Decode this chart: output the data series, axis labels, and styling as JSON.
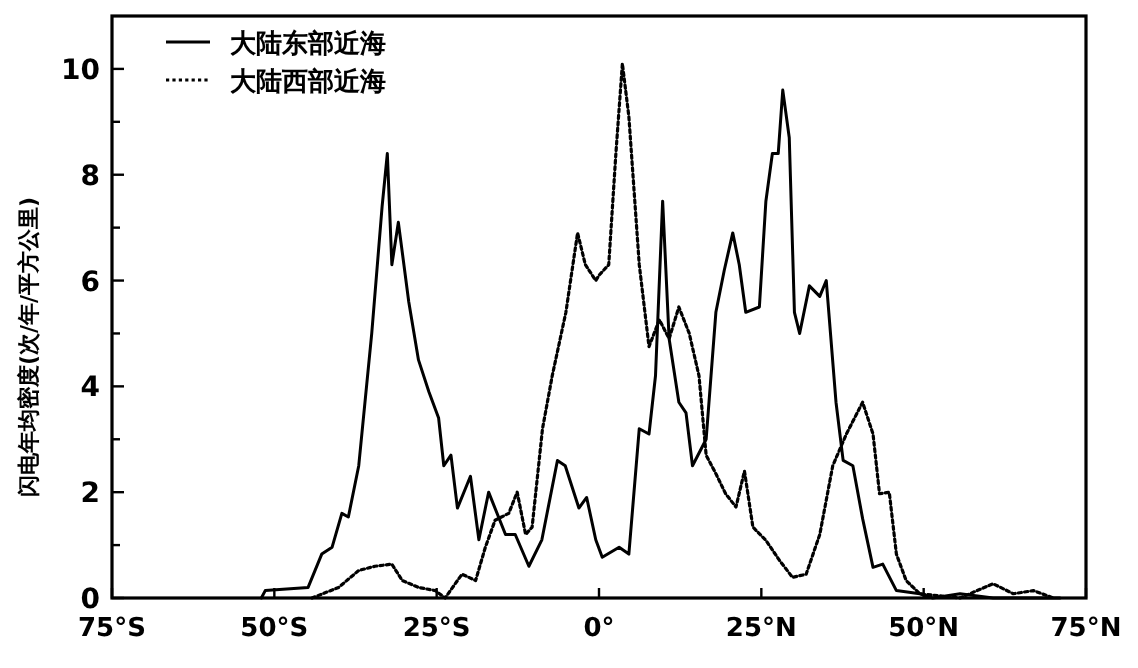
{
  "chart_data": {
    "type": "line",
    "ylabel": "闪电年均密度(次/年/平方公里)",
    "xlim": [
      -75,
      75
    ],
    "xticks": [
      {
        "value": -75,
        "label": "75°S"
      },
      {
        "value": -50,
        "label": "50°S"
      },
      {
        "value": -25,
        "label": "25°S"
      },
      {
        "value": 0,
        "label": "0°"
      },
      {
        "value": 25,
        "label": "25°N"
      },
      {
        "value": 50,
        "label": "50°N"
      },
      {
        "value": 75,
        "label": "75°N"
      }
    ],
    "ylim": [
      0,
      11
    ],
    "yticks": [
      0,
      {
        "value": 1,
        "label": null
      },
      2,
      {
        "value": 3,
        "label": null
      },
      4,
      {
        "value": 5,
        "label": null
      },
      6,
      {
        "value": 7,
        "label": null
      },
      8,
      {
        "value": 9,
        "label": null
      },
      10
    ],
    "grid": false,
    "legend": "top left",
    "series": [
      {
        "name": "大陆东部近海",
        "color": "#000000",
        "line_style": "solid",
        "x": [
          -52,
          -51.4,
          -44.8,
          -42.7,
          -41.1,
          -39.6,
          -38.6,
          -37.0,
          -35.0,
          -33.4,
          -32.6,
          -31.9,
          -30.9,
          -29.3,
          -27.8,
          -26.2,
          -24.7,
          -23.9,
          -22.8,
          -21.8,
          -19.8,
          -18.5,
          -17.0,
          -14.4,
          -12.9,
          -10.8,
          -8.8,
          -6.4,
          -5.2,
          -3.1,
          -1.9,
          -0.5,
          0.5,
          3.1,
          4.6,
          6.2,
          7.7,
          8.7,
          9.8,
          10.8,
          12.3,
          13.4,
          14.4,
          16.5,
          18.0,
          19.3,
          20.6,
          21.6,
          22.6,
          24.7,
          25.7,
          26.7,
          27.6,
          28.3,
          29.3,
          30.1,
          30.9,
          32.4,
          34.0,
          35.0,
          36.5,
          37.6,
          39.1,
          40.6,
          42.2,
          43.7,
          45.8,
          49.4,
          51.4,
          55.6,
          60.7,
          71
        ],
        "values": [
          0,
          0.14,
          0.2,
          0.83,
          0.96,
          1.6,
          1.53,
          2.5,
          5.0,
          7.4,
          8.4,
          6.3,
          7.1,
          5.6,
          4.5,
          3.9,
          3.4,
          2.5,
          2.7,
          1.7,
          2.3,
          1.1,
          2.0,
          1.2,
          1.2,
          0.6,
          1.1,
          2.6,
          2.5,
          1.7,
          1.9,
          1.1,
          0.77,
          0.96,
          0.83,
          3.2,
          3.1,
          4.2,
          7.5,
          4.9,
          3.7,
          3.5,
          2.5,
          3.0,
          5.4,
          6.2,
          6.9,
          6.3,
          5.4,
          5.5,
          7.5,
          8.4,
          8.4,
          9.6,
          8.7,
          5.4,
          5.0,
          5.9,
          5.7,
          6.0,
          3.7,
          2.6,
          2.5,
          1.5,
          0.58,
          0.64,
          0.14,
          0.08,
          0,
          0.08,
          0,
          0
        ]
      },
      {
        "name": "大陆西部近海",
        "color": "#000000",
        "line_style": "dotted",
        "x": [
          -44.2,
          -40.1,
          -37.0,
          -34.5,
          -31.9,
          -30.3,
          -27.8,
          -25.2,
          -23.7,
          -21.1,
          -19.0,
          -17.5,
          -16.0,
          -13.9,
          -12.6,
          -11.3,
          -10.3,
          -8.7,
          -7.2,
          -5.1,
          -3.3,
          -2.1,
          -0.5,
          0,
          1.5,
          2.6,
          3.6,
          4.6,
          6.2,
          7.7,
          9.3,
          10.8,
          12.3,
          13.9,
          15.4,
          16.5,
          18.0,
          19.5,
          21.1,
          22.4,
          23.7,
          25.7,
          27.8,
          29.8,
          31.9,
          34.0,
          36.0,
          38.1,
          40.6,
          42.2,
          43.2,
          44.7,
          45.8,
          47.3,
          49.4,
          55.6,
          60.7,
          63.8,
          66.9,
          70
        ],
        "values": [
          0,
          0.2,
          0.52,
          0.6,
          0.64,
          0.33,
          0.2,
          0.14,
          0,
          0.45,
          0.33,
          0.96,
          1.47,
          1.6,
          2.0,
          1.2,
          1.34,
          3.2,
          4.2,
          5.4,
          6.9,
          6.3,
          6.0,
          6.1,
          6.3,
          8.4,
          10.1,
          9.1,
          6.3,
          4.75,
          5.26,
          4.9,
          5.5,
          5.0,
          4.2,
          2.7,
          2.35,
          1.97,
          1.72,
          2.4,
          1.34,
          1.09,
          0.71,
          0.39,
          0.45,
          1.2,
          2.5,
          3.1,
          3.7,
          3.1,
          1.97,
          2.0,
          0.83,
          0.33,
          0.08,
          0,
          0.27,
          0.08,
          0.14,
          0
        ]
      }
    ]
  }
}
